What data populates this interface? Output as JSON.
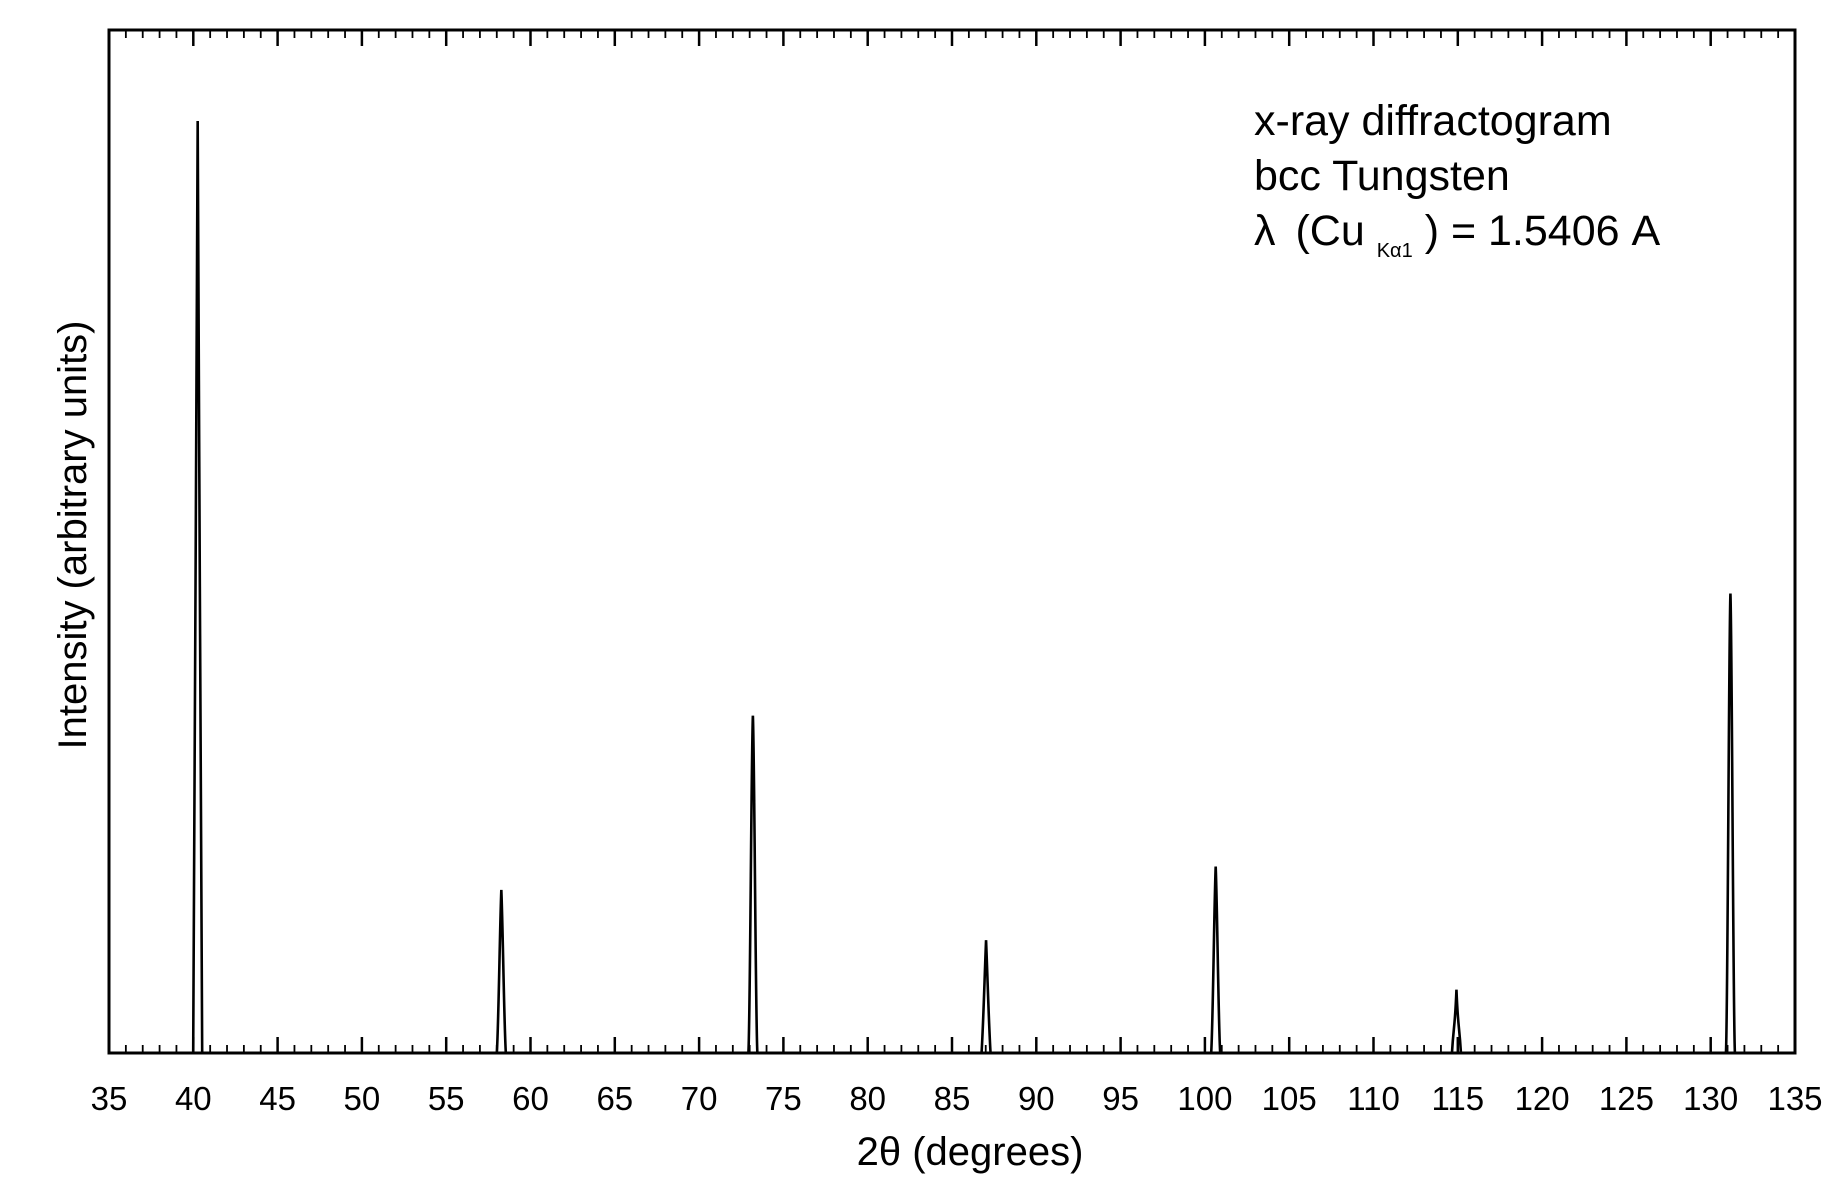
{
  "chart_data": {
    "type": "line",
    "xlabel": "2θ (degrees)",
    "ylabel": "Intensity (arbitrary units)",
    "xlim": [
      35,
      135
    ],
    "ylim": [
      0,
      100
    ],
    "x_ticks": [
      "35",
      "40",
      "45",
      "50",
      "55",
      "60",
      "65",
      "70",
      "75",
      "80",
      "85",
      "90",
      "95",
      "100",
      "105",
      "110",
      "115",
      "120",
      "125",
      "130",
      "135"
    ],
    "y_tick_labels": "none",
    "grid": false,
    "legend": "none",
    "annotation": {
      "line1": "x-ray diffractogram",
      "line2": "bcc Tungsten",
      "line3_lambda": "λ",
      "line3_paren_open": "(Cu",
      "line3_subscript": "Kα1",
      "line3_rest": ") = 1.5406 A"
    },
    "series": [
      {
        "peaks": [
          {
            "x": 40.26,
            "y": 100
          },
          {
            "x": 58.27,
            "y": 17.5
          },
          {
            "x": 73.19,
            "y": 36.2
          },
          {
            "x": 87.02,
            "y": 12.1
          },
          {
            "x": 100.64,
            "y": 20.0
          },
          {
            "x": 114.92,
            "y": 6.8
          },
          {
            "x": 131.17,
            "y": 49.3
          }
        ]
      }
    ],
    "colors": {
      "line": "#000000",
      "axes": "#000000",
      "background": "#ffffff"
    }
  }
}
